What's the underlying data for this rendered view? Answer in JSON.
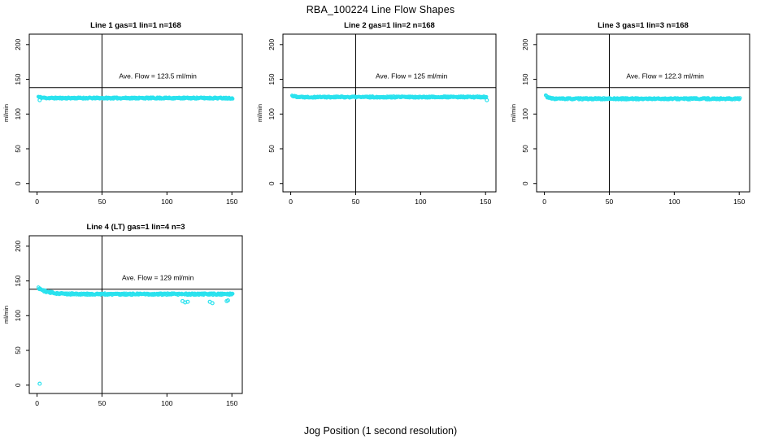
{
  "title": "RBA_100224  Line Flow Shapes",
  "xlabel": "Jog Position (1 second resolution)",
  "colors": {
    "points": "#2ae2ee",
    "axis": "#000000",
    "background": "#ffffff"
  },
  "chart_data": [
    {
      "type": "scatter",
      "title": "Line 1 gas=1 lin=1 n=168",
      "ylabel": "ml/min",
      "annotation": "Ave. Flow =  123.5  ml/min",
      "ave_flow_ml_min": 123.5,
      "n": 168,
      "xlim": [
        -6,
        158
      ],
      "ylim": [
        -12,
        215
      ],
      "xticks": [
        0,
        50,
        100,
        150
      ],
      "yticks": [
        0,
        50,
        100,
        150,
        200
      ],
      "vline_x": 50,
      "hline_y": 138,
      "annotation_pos": [
        93,
        151
      ],
      "series": {
        "x_start": 1,
        "x_end": 151,
        "step": 0.4,
        "base": 123,
        "start_amp": 2,
        "decay_tau": 2.5,
        "noise": 1.1,
        "seed": 11
      },
      "outliers": [
        [
          2,
          120
        ]
      ]
    },
    {
      "type": "scatter",
      "title": "Line 2 gas=1 lin=2 n=168",
      "ylabel": "ml/min",
      "annotation": "Ave. Flow =  125  ml/min",
      "ave_flow_ml_min": 125,
      "n": 168,
      "xlim": [
        -6,
        158
      ],
      "ylim": [
        -12,
        215
      ],
      "xticks": [
        0,
        50,
        100,
        150
      ],
      "yticks": [
        0,
        50,
        100,
        150,
        200
      ],
      "vline_x": 50,
      "hline_y": 138,
      "annotation_pos": [
        93,
        151
      ],
      "series": {
        "x_start": 1,
        "x_end": 151,
        "step": 0.4,
        "base": 124.5,
        "start_amp": 2,
        "decay_tau": 3,
        "noise": 1.1,
        "seed": 22
      },
      "outliers": [
        [
          151,
          120
        ]
      ]
    },
    {
      "type": "scatter",
      "title": "Line 3 gas=1 lin=3 n=168",
      "ylabel": "ml/min",
      "annotation": "Ave. Flow =  122.3  ml/min",
      "ave_flow_ml_min": 122.3,
      "n": 168,
      "xlim": [
        -6,
        158
      ],
      "ylim": [
        -12,
        215
      ],
      "xticks": [
        0,
        50,
        100,
        150
      ],
      "yticks": [
        0,
        50,
        100,
        150,
        200
      ],
      "vline_x": 50,
      "hline_y": 138,
      "annotation_pos": [
        93,
        151
      ],
      "series": {
        "x_start": 1,
        "x_end": 151,
        "step": 0.4,
        "base": 122,
        "start_amp": 5,
        "decay_tau": 2,
        "noise": 1.2,
        "seed": 33
      },
      "outliers": []
    },
    {
      "type": "scatter",
      "title": "Line 4 (LT) gas=1 lin=4 n=3",
      "ylabel": "ml/min",
      "annotation": "Ave. Flow =  129  ml/min",
      "ave_flow_ml_min": 129,
      "n": 3,
      "xlim": [
        -6,
        158
      ],
      "ylim": [
        -12,
        215
      ],
      "xticks": [
        0,
        50,
        100,
        150
      ],
      "yticks": [
        0,
        50,
        100,
        150,
        200
      ],
      "vline_x": 50,
      "hline_y": 138,
      "annotation_pos": [
        93,
        151
      ],
      "series": {
        "x_start": 1,
        "x_end": 151,
        "step": 0.4,
        "base": 131,
        "start_amp": 9,
        "decay_tau": 7,
        "noise": 1.3,
        "seed": 44
      },
      "outliers": [
        [
          2,
          2
        ],
        [
          112,
          121
        ],
        [
          114,
          119
        ],
        [
          116,
          120
        ],
        [
          133,
          120
        ],
        [
          135,
          118
        ],
        [
          146,
          121
        ],
        [
          147,
          122
        ]
      ]
    }
  ]
}
